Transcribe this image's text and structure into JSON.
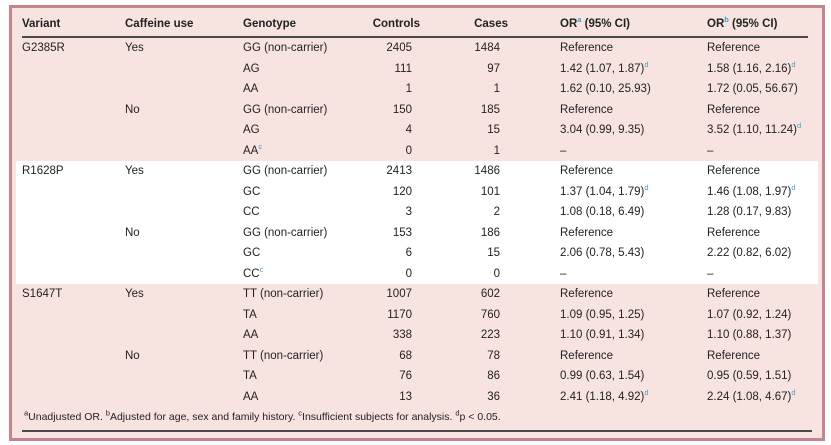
{
  "colors": {
    "frame_border": "#c5848d",
    "band_pink": "#f7e4e1",
    "band_white": "#ffffff",
    "rule_dark": "#4a4a4a",
    "text": "#222222",
    "superscript_accent": "#3f9ec9"
  },
  "table": {
    "columns": [
      {
        "label": "Variant",
        "sup": "",
        "tail": ""
      },
      {
        "label": "Caffeine use",
        "sup": "",
        "tail": ""
      },
      {
        "label": "Genotype",
        "sup": "",
        "tail": ""
      },
      {
        "label": "Controls",
        "sup": "",
        "tail": ""
      },
      {
        "label": "Cases",
        "sup": "",
        "tail": ""
      },
      {
        "label": "OR",
        "sup": "a",
        "tail": " (95% CI)"
      },
      {
        "label": "OR",
        "sup": "b",
        "tail": " (95% CI)"
      }
    ],
    "rows": [
      {
        "variant": "G2385R",
        "caffeine": "Yes",
        "genotype": "GG (non-carrier)",
        "genotype_sup": "",
        "controls": "2405",
        "cases": "1484",
        "or_unadj": "Reference",
        "or_unadj_sup": "",
        "or_adj": "Reference",
        "or_adj_sup": ""
      },
      {
        "variant": "",
        "caffeine": "",
        "genotype": "AG",
        "genotype_sup": "",
        "controls": "111",
        "cases": "97",
        "or_unadj": "1.42 (1.07, 1.87)",
        "or_unadj_sup": "d",
        "or_adj": "1.58 (1.16, 2.16)",
        "or_adj_sup": "d"
      },
      {
        "variant": "",
        "caffeine": "",
        "genotype": "AA",
        "genotype_sup": "",
        "controls": "1",
        "cases": "1",
        "or_unadj": "1.62 (0.10, 25.93)",
        "or_unadj_sup": "",
        "or_adj": "1.72 (0.05, 56.67)",
        "or_adj_sup": ""
      },
      {
        "variant": "",
        "caffeine": "No",
        "genotype": "GG (non-carrier)",
        "genotype_sup": "",
        "controls": "150",
        "cases": "185",
        "or_unadj": "Reference",
        "or_unadj_sup": "",
        "or_adj": "Reference",
        "or_adj_sup": ""
      },
      {
        "variant": "",
        "caffeine": "",
        "genotype": "AG",
        "genotype_sup": "",
        "controls": "4",
        "cases": "15",
        "or_unadj": "3.04 (0.99, 9.35)",
        "or_unadj_sup": "",
        "or_adj": "3.52 (1.10, 11.24)",
        "or_adj_sup": "d"
      },
      {
        "variant": "",
        "caffeine": "",
        "genotype": "AA",
        "genotype_sup": "c",
        "controls": "0",
        "cases": "1",
        "or_unadj": "–",
        "or_unadj_sup": "",
        "or_adj": "–",
        "or_adj_sup": ""
      },
      {
        "variant": "R1628P",
        "caffeine": "Yes",
        "genotype": "GG (non-carrier)",
        "genotype_sup": "",
        "controls": "2413",
        "cases": "1486",
        "or_unadj": "Reference",
        "or_unadj_sup": "",
        "or_adj": "Reference",
        "or_adj_sup": ""
      },
      {
        "variant": "",
        "caffeine": "",
        "genotype": "GC",
        "genotype_sup": "",
        "controls": "120",
        "cases": "101",
        "or_unadj": "1.37 (1.04, 1.79)",
        "or_unadj_sup": "d",
        "or_adj": "1.46 (1.08, 1.97)",
        "or_adj_sup": "d"
      },
      {
        "variant": "",
        "caffeine": "",
        "genotype": "CC",
        "genotype_sup": "",
        "controls": "3",
        "cases": "2",
        "or_unadj": "1.08 (0.18, 6.49)",
        "or_unadj_sup": "",
        "or_adj": "1.28 (0.17, 9.83)",
        "or_adj_sup": ""
      },
      {
        "variant": "",
        "caffeine": "No",
        "genotype": "GG (non-carrier)",
        "genotype_sup": "",
        "controls": "153",
        "cases": "186",
        "or_unadj": "Reference",
        "or_unadj_sup": "",
        "or_adj": "Reference",
        "or_adj_sup": ""
      },
      {
        "variant": "",
        "caffeine": "",
        "genotype": "GC",
        "genotype_sup": "",
        "controls": "6",
        "cases": "15",
        "or_unadj": "2.06 (0.78, 5.43)",
        "or_unadj_sup": "",
        "or_adj": "2.22 (0.82, 6.02)",
        "or_adj_sup": ""
      },
      {
        "variant": "",
        "caffeine": "",
        "genotype": "CC",
        "genotype_sup": "c",
        "controls": "0",
        "cases": "0",
        "or_unadj": "–",
        "or_unadj_sup": "",
        "or_adj": "–",
        "or_adj_sup": ""
      },
      {
        "variant": "S1647T",
        "caffeine": "Yes",
        "genotype": "TT (non-carrier)",
        "genotype_sup": "",
        "controls": "1007",
        "cases": "602",
        "or_unadj": "Reference",
        "or_unadj_sup": "",
        "or_adj": "Reference",
        "or_adj_sup": ""
      },
      {
        "variant": "",
        "caffeine": "",
        "genotype": "TA",
        "genotype_sup": "",
        "controls": "1170",
        "cases": "760",
        "or_unadj": "1.09 (0.95, 1.25)",
        "or_unadj_sup": "",
        "or_adj": "1.07 (0.92, 1.24)",
        "or_adj_sup": ""
      },
      {
        "variant": "",
        "caffeine": "",
        "genotype": "AA",
        "genotype_sup": "",
        "controls": "338",
        "cases": "223",
        "or_unadj": "1.10 (0.91, 1.34)",
        "or_unadj_sup": "",
        "or_adj": "1.10 (0.88, 1.37)",
        "or_adj_sup": ""
      },
      {
        "variant": "",
        "caffeine": "No",
        "genotype": "TT (non-carrier)",
        "genotype_sup": "",
        "controls": "68",
        "cases": "78",
        "or_unadj": "Reference",
        "or_unadj_sup": "",
        "or_adj": "Reference",
        "or_adj_sup": ""
      },
      {
        "variant": "",
        "caffeine": "",
        "genotype": "TA",
        "genotype_sup": "",
        "controls": "76",
        "cases": "86",
        "or_unadj": "0.99 (0.63, 1.54)",
        "or_unadj_sup": "",
        "or_adj": "0.95 (0.59, 1.51)",
        "or_adj_sup": ""
      },
      {
        "variant": "",
        "caffeine": "",
        "genotype": "AA",
        "genotype_sup": "",
        "controls": "13",
        "cases": "36",
        "or_unadj": "2.41 (1.18, 4.92)",
        "or_unadj_sup": "d",
        "or_adj": "2.24 (1.08, 4.67)",
        "or_adj_sup": "d"
      }
    ]
  },
  "footnote": {
    "segments": [
      {
        "sup": "a",
        "text": "Unadjusted OR. "
      },
      {
        "sup": "b",
        "text": "Adjusted for age, sex and family history. "
      },
      {
        "sup": "c",
        "text": "Insufficient subjects for analysis. "
      },
      {
        "sup": "d",
        "text": "p < 0.05."
      }
    ]
  }
}
